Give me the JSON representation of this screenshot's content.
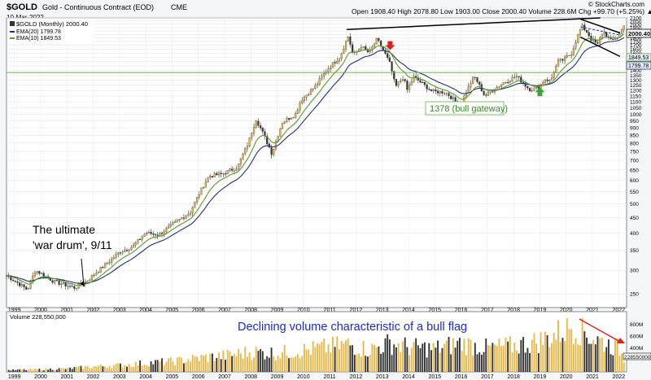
{
  "header": {
    "symbol": "$GOLD",
    "name": "Gold - Continuous Contract (EOD)",
    "exchange": "CME",
    "date": "10-Mar-2022",
    "ohlc": "Open 1908.40  High 2078.80  Low 1903.00  Close 2000.40  Volume 228.6M  Chg +99.70 (+5.25%) ▲",
    "copyright": "© StockCharts.com"
  },
  "legend": {
    "main": "$GOLD (Monthly) 2000.40",
    "ema20": "EMA(20) 1799.78",
    "ema10": "EMA(10) 1849.53"
  },
  "annotations": {
    "war_drum_1": "The ultimate",
    "war_drum_2": "'war drum', 9/11",
    "bull_gateway": "1378 (bull gateway)",
    "volume_note": "Declining volume characteristic of a bull flag"
  },
  "price_badges": {
    "last": "2000.40",
    "ema10": "1849.53",
    "ema20": "1799.78"
  },
  "volume_panel": {
    "label": "Volume 228,550,000",
    "axis_ticks": [
      "800M",
      "600M",
      "400M"
    ],
    "last_badge": "228550000"
  },
  "colors": {
    "up": "#e8b94a",
    "down": "#333333",
    "ema20": "#1f2f7a",
    "ema10": "#5a9a2c",
    "horizontal": "#6cb04e",
    "trendline": "#000000",
    "red_arrow": "#e02020",
    "green_arrow": "#3aa33a",
    "flag_dash": "#2040c0",
    "volume_text": "#1a2ad0"
  },
  "chart_data": [
    {
      "type": "candlestick",
      "title": "$GOLD (Monthly) 2000.40",
      "y_scale": "log",
      "ylim": [
        225,
        2100
      ],
      "y_ticks": [
        250,
        300,
        350,
        400,
        450,
        500,
        550,
        600,
        650,
        700,
        750,
        800,
        850,
        900,
        950,
        1000,
        1050,
        1100,
        1150,
        1200,
        1250,
        1300,
        1350,
        1400,
        1450,
        1500,
        1550,
        1600,
        1650,
        1700,
        1750,
        1800,
        1850,
        1900,
        1950,
        2000,
        2050,
        2100
      ],
      "x_ticks": [
        "1999",
        "2000",
        "2001",
        "2002",
        "2003",
        "2004",
        "2005",
        "2006",
        "2007",
        "2008",
        "2009",
        "2010",
        "2011",
        "2012",
        "2013",
        "2014",
        "2015",
        "2016",
        "2017",
        "2018",
        "2019",
        "2020",
        "2021",
        "2022"
      ],
      "xlim": [
        1998.7,
        2022.3
      ],
      "close_anchors": [
        [
          1998.7,
          288
        ],
        [
          1999.5,
          258
        ],
        [
          1999.8,
          300
        ],
        [
          2000.5,
          275
        ],
        [
          2001.3,
          262
        ],
        [
          2001.8,
          278
        ],
        [
          2002.5,
          315
        ],
        [
          2003.0,
          345
        ],
        [
          2003.5,
          360
        ],
        [
          2004.0,
          400
        ],
        [
          2004.5,
          395
        ],
        [
          2005.0,
          425
        ],
        [
          2005.7,
          470
        ],
        [
          2006.4,
          620
        ],
        [
          2006.9,
          630
        ],
        [
          2007.5,
          665
        ],
        [
          2007.9,
          800
        ],
        [
          2008.2,
          960
        ],
        [
          2008.8,
          735
        ],
        [
          2009.2,
          940
        ],
        [
          2009.7,
          1000
        ],
        [
          2009.9,
          1110
        ],
        [
          2010.5,
          1250
        ],
        [
          2010.9,
          1410
        ],
        [
          2011.4,
          1560
        ],
        [
          2011.7,
          1820
        ],
        [
          2011.9,
          1570
        ],
        [
          2012.2,
          1690
        ],
        [
          2012.5,
          1600
        ],
        [
          2012.8,
          1780
        ],
        [
          2013.0,
          1660
        ],
        [
          2013.3,
          1470
        ],
        [
          2013.5,
          1230
        ],
        [
          2013.8,
          1330
        ],
        [
          2013.95,
          1205
        ],
        [
          2014.2,
          1330
        ],
        [
          2014.9,
          1190
        ],
        [
          2015.4,
          1185
        ],
        [
          2015.8,
          1100
        ],
        [
          2015.95,
          1060
        ],
        [
          2016.5,
          1340
        ],
        [
          2016.9,
          1150
        ],
        [
          2017.6,
          1270
        ],
        [
          2018.1,
          1340
        ],
        [
          2018.6,
          1210
        ],
        [
          2018.9,
          1220
        ],
        [
          2019.2,
          1310
        ],
        [
          2019.4,
          1290
        ],
        [
          2019.7,
          1500
        ],
        [
          2019.9,
          1520
        ],
        [
          2020.2,
          1600
        ],
        [
          2020.6,
          1970
        ],
        [
          2020.8,
          1880
        ],
        [
          2020.95,
          1780
        ],
        [
          2021.2,
          1710
        ],
        [
          2021.4,
          1900
        ],
        [
          2021.7,
          1760
        ],
        [
          2021.95,
          1810
        ],
        [
          2022.1,
          1900
        ],
        [
          2022.2,
          2000.4
        ]
      ],
      "series": [
        {
          "name": "EMA(20) 1799.78",
          "last": 1799.78
        },
        {
          "name": "EMA(10) 1849.53",
          "last": 1849.53
        }
      ],
      "horizontal_lines": [
        {
          "value": 1378,
          "label": "1378 (bull gateway)"
        }
      ],
      "trendlines": [
        {
          "from": [
            2011.65,
            1920
          ],
          "to": [
            2021.3,
            2100
          ]
        },
        {
          "from": [
            2020.55,
            2080
          ],
          "to": [
            2022.05,
            1870
          ]
        },
        {
          "from": [
            2020.55,
            1810
          ],
          "to": [
            2022.05,
            1560
          ]
        }
      ],
      "markers": [
        {
          "type": "red_arrow_down",
          "at": [
            2013.3,
            1660
          ]
        },
        {
          "type": "green_arrow_up",
          "at": [
            2019.0,
            1215
          ]
        },
        {
          "type": "black_arrow",
          "at": [
            2001.7,
            262
          ]
        }
      ]
    },
    {
      "type": "bar",
      "title": "Volume 228,550,000",
      "ylim": [
        0,
        900000000
      ],
      "y_ticks": [
        "400M",
        "600M",
        "800M"
      ],
      "anchors": [
        [
          1998.7,
          30
        ],
        [
          2000.0,
          45
        ],
        [
          2001.0,
          60
        ],
        [
          2002.0,
          95
        ],
        [
          2003.0,
          120
        ],
        [
          2004.0,
          160
        ],
        [
          2005.0,
          190
        ],
        [
          2006.0,
          250
        ],
        [
          2007.0,
          290
        ],
        [
          2008.0,
          360
        ],
        [
          2009.0,
          340
        ],
        [
          2010.0,
          390
        ],
        [
          2011.0,
          450
        ],
        [
          2011.7,
          500
        ],
        [
          2012.5,
          400
        ],
        [
          2013.3,
          520
        ],
        [
          2014.0,
          450
        ],
        [
          2015.0,
          420
        ],
        [
          2016.0,
          520
        ],
        [
          2017.0,
          430
        ],
        [
          2018.0,
          470
        ],
        [
          2019.0,
          560
        ],
        [
          2019.7,
          700
        ],
        [
          2020.2,
          850
        ],
        [
          2020.6,
          760
        ],
        [
          2021.0,
          620
        ],
        [
          2021.5,
          520
        ],
        [
          2022.0,
          430
        ],
        [
          2022.2,
          228.55
        ]
      ],
      "units": "millions of contracts"
    }
  ]
}
